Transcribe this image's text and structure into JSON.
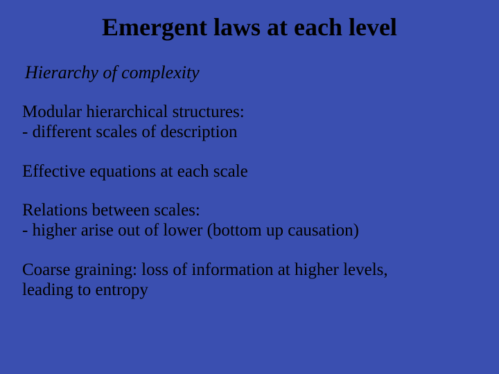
{
  "slide": {
    "background_color": "#3a4fb0",
    "text_color": "#000000",
    "title": {
      "text": "Emergent laws at each level",
      "fontsize": 36,
      "weight": "bold",
      "align": "center"
    },
    "subtitle": {
      "text": "Hierarchy of complexity",
      "fontsize": 26,
      "style": "italic"
    },
    "paragraphs": [
      {
        "line1": "Modular hierarchical structures:",
        "line2": "- different scales of description"
      },
      {
        "line1": "Effective equations at each scale"
      },
      {
        "line1": "Relations between scales:",
        "line2": "- higher arise out of lower (bottom up causation)"
      },
      {
        "line1": "Coarse graining: loss of information at higher levels,",
        "line2": "leading to entropy"
      }
    ],
    "body_fontsize": 25,
    "font_family": "Times New Roman"
  }
}
